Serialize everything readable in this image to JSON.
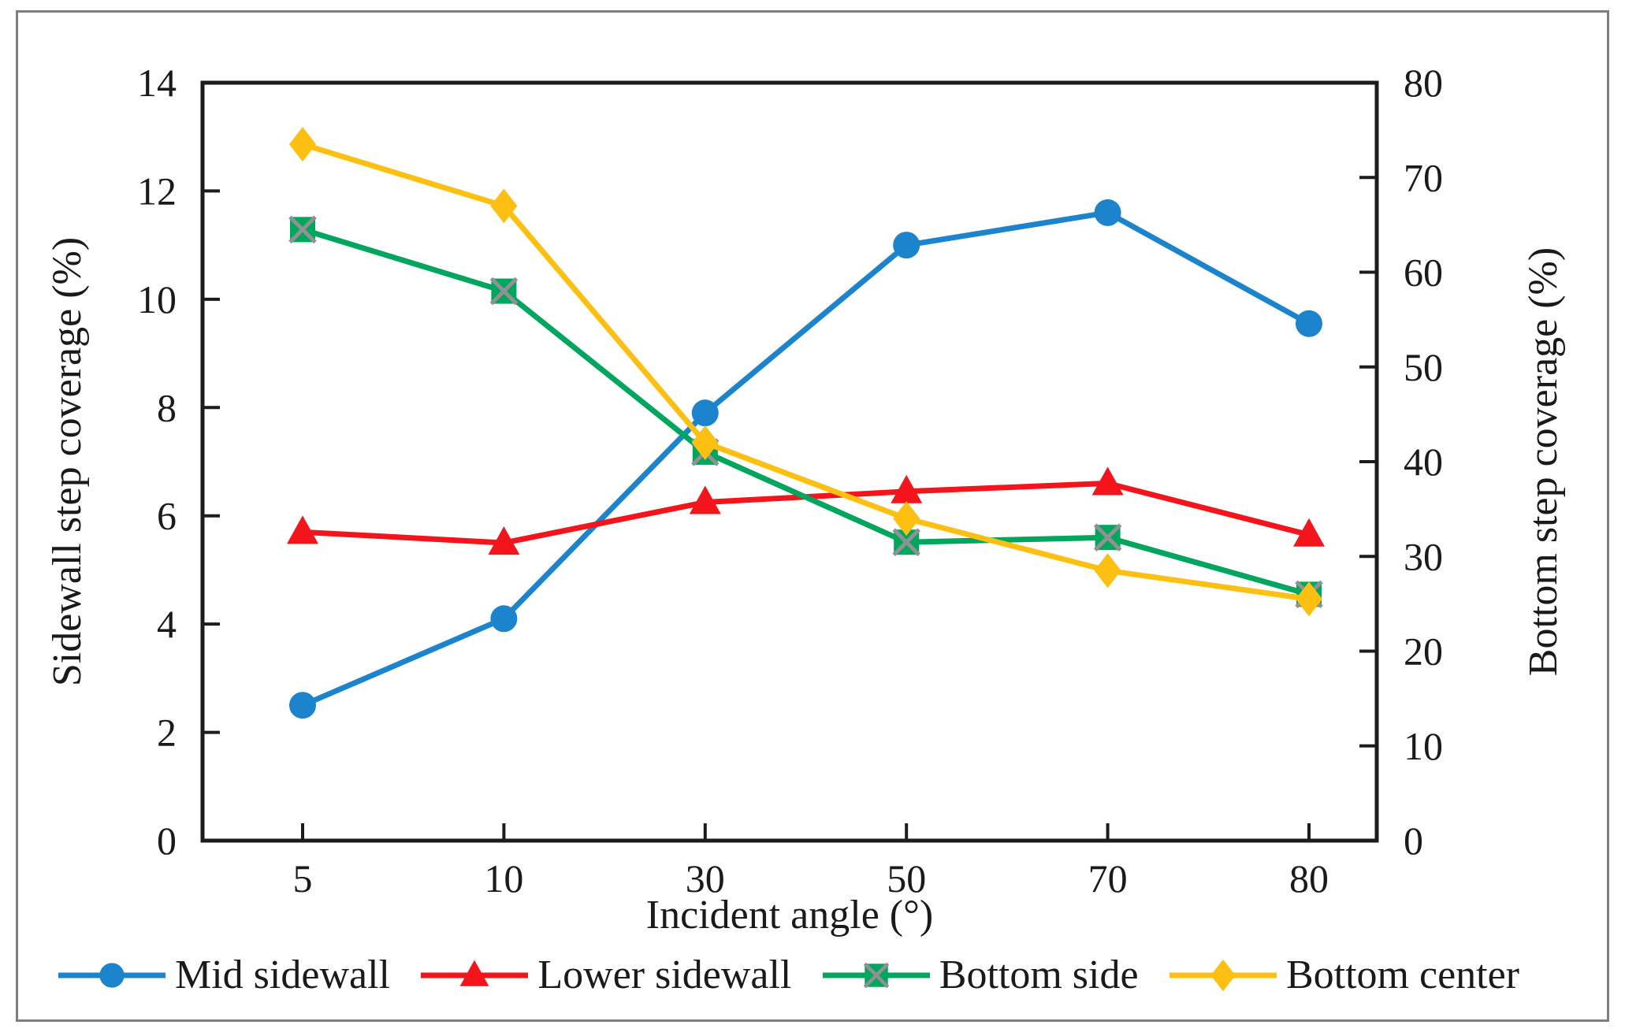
{
  "figure": {
    "background": "#ffffff",
    "border_color": "#7e7e7e",
    "text_color": "#1a1a1a",
    "axis_color": "#1c1c1c"
  },
  "chart_data": {
    "type": "line",
    "title": "",
    "xlabel": "Incident angle (°)",
    "ylabel_left": "Sidewall step coverage (%)",
    "ylabel_right": "Bottom step coverage (%)",
    "categories": [
      "5",
      "10",
      "30",
      "50",
      "70",
      "80"
    ],
    "y_left_axis": {
      "min": 0,
      "max": 14,
      "tick_step": 2,
      "tick_labels": [
        "0",
        "2",
        "4",
        "6",
        "8",
        "10",
        "12",
        "14"
      ]
    },
    "y_right_axis": {
      "min": 0,
      "max": 80,
      "tick_step": 10,
      "tick_labels": [
        "0",
        "10",
        "20",
        "30",
        "40",
        "50",
        "60",
        "70",
        "80"
      ]
    },
    "grid": false,
    "legend_position": "bottom",
    "series": [
      {
        "name": "Mid sidewall",
        "axis": "left",
        "marker": "circle",
        "color": "#1b84cc",
        "values": [
          2.5,
          4.1,
          7.9,
          11.0,
          11.6,
          9.55
        ]
      },
      {
        "name": "Lower sidewall",
        "axis": "left",
        "marker": "triangle",
        "color": "#f3141c",
        "values": [
          5.7,
          5.5,
          6.25,
          6.45,
          6.6,
          5.65
        ]
      },
      {
        "name": "Bottom side",
        "axis": "right",
        "marker": "square-x",
        "color": "#00a65d",
        "marker_x_color": "#8f9193",
        "values": [
          64.5,
          58,
          41,
          31.5,
          32,
          26
        ]
      },
      {
        "name": "Bottom center",
        "axis": "right",
        "marker": "diamond",
        "color": "#fdc012",
        "values": [
          73.5,
          67,
          42,
          34,
          28.5,
          25.5
        ]
      }
    ]
  }
}
